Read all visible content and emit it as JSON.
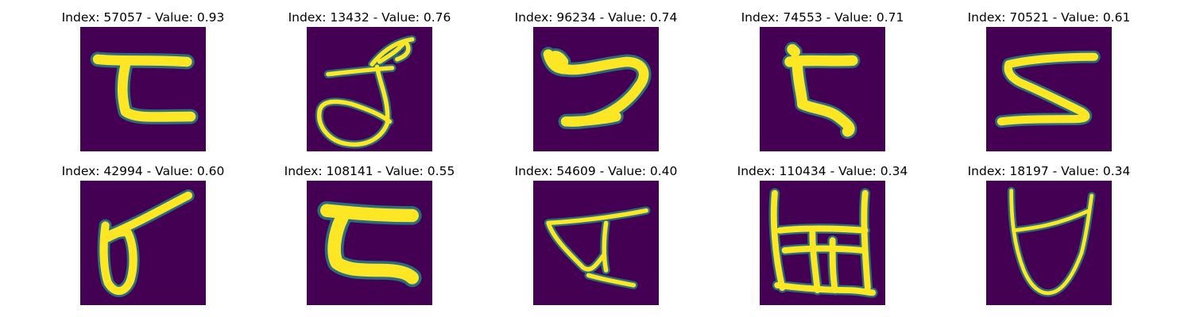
{
  "colormap": {
    "background": "#440154",
    "low": "#3b528b",
    "mid": "#21918c",
    "high": "#5ec962",
    "peak": "#fde725"
  },
  "grid": {
    "rows": 2,
    "cols": 5,
    "cells": [
      {
        "title": "Index: 57057 - Value: 0.93",
        "glyph": "glyph-57057"
      },
      {
        "title": "Index: 13432 - Value: 0.76",
        "glyph": "glyph-13432"
      },
      {
        "title": "Index: 96234 - Value: 0.74",
        "glyph": "glyph-96234"
      },
      {
        "title": "Index: 74553 - Value: 0.71",
        "glyph": "glyph-74553"
      },
      {
        "title": "Index: 70521 - Value: 0.61",
        "glyph": "glyph-70521"
      },
      {
        "title": "Index: 42994 - Value: 0.60",
        "glyph": "glyph-42994"
      },
      {
        "title": "Index: 108141 - Value: 0.55",
        "glyph": "glyph-108141"
      },
      {
        "title": "Index: 54609 - Value: 0.40",
        "glyph": "glyph-54609"
      },
      {
        "title": "Index: 110434 - Value: 0.34",
        "glyph": "glyph-110434"
      },
      {
        "title": "Index: 18197 - Value: 0.34",
        "glyph": "glyph-18197"
      }
    ]
  }
}
